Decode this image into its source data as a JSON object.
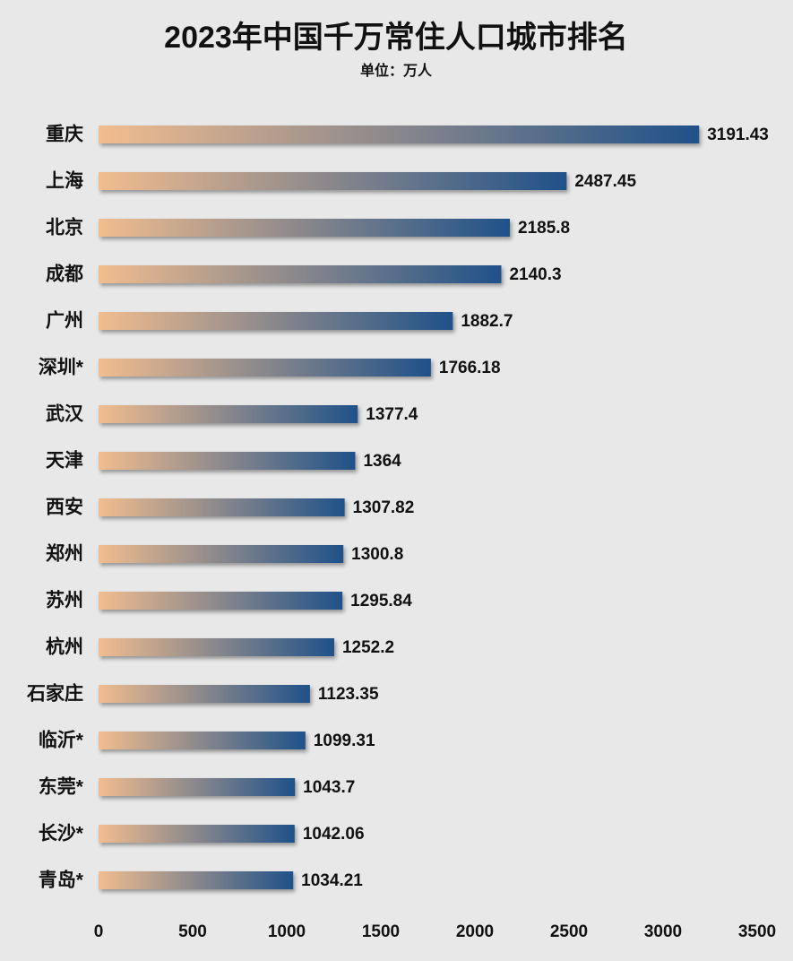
{
  "chart_data": {
    "type": "bar",
    "orientation": "horizontal",
    "title": "2023年中国千万常住人口城市排名",
    "subtitle": "单位：万人",
    "categories": [
      "重庆",
      "上海",
      "北京",
      "成都",
      "广州",
      "深圳*",
      "武汉",
      "天津",
      "西安",
      "郑州",
      "苏州",
      "杭州",
      "石家庄",
      "临沂*",
      "东莞*",
      "长沙*",
      "青岛*"
    ],
    "values": [
      3191.43,
      2487.45,
      2185.8,
      2140.3,
      1882.7,
      1766.18,
      1377.4,
      1364,
      1307.82,
      1300.8,
      1295.84,
      1252.2,
      1123.35,
      1099.31,
      1043.7,
      1042.06,
      1034.21
    ],
    "gradient_colors": [
      "#f2bd8f",
      "#1f5189"
    ],
    "xlim": [
      0,
      3500
    ],
    "xticks": [
      0,
      500,
      1000,
      1500,
      2000,
      2500,
      3000,
      3500
    ],
    "grid": false
  }
}
